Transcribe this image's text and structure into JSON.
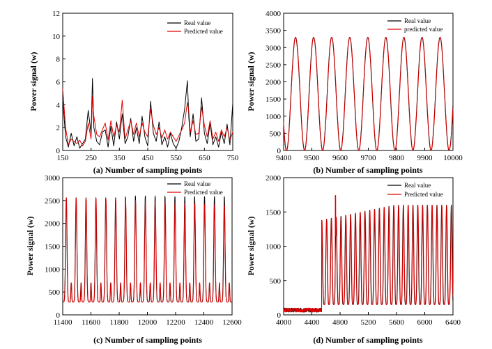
{
  "colors": {
    "real": "#000000",
    "predicted": "#e00000"
  },
  "chart_data": [
    {
      "id": "a",
      "type": "line",
      "xlabel": "(a) Number of sampling points",
      "ylabel": "Power signal (w)",
      "xlim": [
        150,
        750
      ],
      "ylim": [
        0,
        12
      ],
      "xticks": [
        150,
        250,
        350,
        450,
        550,
        650,
        750
      ],
      "yticks": [
        0,
        2,
        4,
        6,
        8,
        10,
        12
      ],
      "legend": [
        "Real value",
        "Predicted value"
      ],
      "series": [
        {
          "name": "Real value",
          "x": [
            150,
            160,
            170,
            180,
            190,
            200,
            210,
            220,
            230,
            240,
            250,
            255,
            260,
            270,
            280,
            290,
            300,
            310,
            320,
            330,
            340,
            350,
            360,
            370,
            380,
            390,
            400,
            410,
            420,
            430,
            440,
            450,
            460,
            470,
            480,
            490,
            500,
            510,
            520,
            530,
            540,
            550,
            560,
            570,
            580,
            590,
            595,
            600,
            610,
            620,
            630,
            640,
            650,
            660,
            670,
            680,
            690,
            700,
            710,
            720,
            730,
            740,
            750
          ],
          "y": [
            4.5,
            1.2,
            0.3,
            1.5,
            0.4,
            1.2,
            0.2,
            0.6,
            1.0,
            3.5,
            1.5,
            6.3,
            2.0,
            0.8,
            0.5,
            1.6,
            1.8,
            0.3,
            2.1,
            0.4,
            2.5,
            1.0,
            3.2,
            0.6,
            1.2,
            2.8,
            0.8,
            2.0,
            0.6,
            3.0,
            1.2,
            0.4,
            4.3,
            1.5,
            0.8,
            2.5,
            0.5,
            1.2,
            0.3,
            1.5,
            0.6,
            0.2,
            0.8,
            2.0,
            3.6,
            6.1,
            2.8,
            1.2,
            3.2,
            0.8,
            1.0,
            4.6,
            1.5,
            0.6,
            2.4,
            0.5,
            1.2,
            0.3,
            1.6,
            0.6,
            2.3,
            0.5,
            4.1
          ]
        },
        {
          "name": "Predicted value",
          "x": [
            150,
            160,
            170,
            180,
            190,
            200,
            210,
            220,
            230,
            240,
            250,
            255,
            260,
            270,
            280,
            290,
            300,
            310,
            320,
            330,
            340,
            350,
            360,
            370,
            380,
            390,
            400,
            410,
            420,
            430,
            440,
            450,
            460,
            470,
            480,
            490,
            500,
            510,
            520,
            530,
            540,
            550,
            560,
            570,
            580,
            590,
            595,
            600,
            610,
            620,
            630,
            640,
            650,
            660,
            670,
            680,
            690,
            700,
            710,
            720,
            730,
            740,
            750
          ],
          "y": [
            5.4,
            2.0,
            0.5,
            1.0,
            0.8,
            0.6,
            0.9,
            0.4,
            0.8,
            2.4,
            1.0,
            4.7,
            3.0,
            1.4,
            1.2,
            1.8,
            2.4,
            0.9,
            2.6,
            1.2,
            2.2,
            1.6,
            4.4,
            1.0,
            1.8,
            2.6,
            1.4,
            2.4,
            1.2,
            2.4,
            1.6,
            1.2,
            3.6,
            2.2,
            1.4,
            2.0,
            1.1,
            1.8,
            1.0,
            1.6,
            1.2,
            0.8,
            1.3,
            1.8,
            2.4,
            4.2,
            3.4,
            1.6,
            2.6,
            1.4,
            1.5,
            3.8,
            2.2,
            1.2,
            2.6,
            1.0,
            1.6,
            0.8,
            1.8,
            1.2,
            2.0,
            0.9,
            1.6
          ]
        }
      ]
    },
    {
      "id": "b",
      "type": "line",
      "xlabel": "(b) Number of sampling points",
      "ylabel": "Power signal (w)",
      "xlim": [
        9400,
        10000
      ],
      "ylim": [
        0,
        4000
      ],
      "xticks": [
        9400,
        9500,
        9600,
        9700,
        9800,
        9900,
        10000
      ],
      "yticks": [
        0,
        500,
        1000,
        1500,
        2000,
        2500,
        3000,
        3500,
        4000
      ],
      "legend": [
        "Real value",
        "predicted value"
      ],
      "wave": {
        "peak": 3300,
        "trough": 0,
        "period": 64,
        "first_peak": 9442
      },
      "series": [
        {
          "name": "Real value"
        },
        {
          "name": "predicted value"
        }
      ]
    },
    {
      "id": "c",
      "type": "line",
      "xlabel": "(c) Number of sampling points",
      "ylabel": "Power signal (w)",
      "xlim": [
        11400,
        12600
      ],
      "ylim": [
        0,
        3000
      ],
      "xticks": [
        11400,
        11600,
        11800,
        12000,
        12200,
        12400,
        12600
      ],
      "yticks": [
        0,
        500,
        1000,
        1500,
        2000,
        2500,
        3000
      ],
      "legend": [
        "Real value",
        "Predicted value"
      ],
      "wave": {
        "period": 70,
        "first_peak": 11425,
        "low": 280,
        "secondary": 700,
        "real_peaks": [
          2560,
          2560,
          2560,
          2560,
          2560,
          2560,
          2580,
          2600,
          2600,
          2600,
          2600,
          2600,
          2600,
          2600,
          2600,
          2600,
          2600
        ],
        "pred_peaks": [
          2560,
          2550,
          2550,
          2550,
          2540,
          2530,
          2510,
          2500,
          2490,
          2480,
          2470,
          2450,
          2440,
          2430,
          2420,
          2410,
          2400
        ]
      },
      "series": [
        {
          "name": "Real value"
        },
        {
          "name": "Predicted value"
        }
      ]
    },
    {
      "id": "d",
      "type": "line",
      "xlabel": "(d) Number of sampling points",
      "ylabel": "Power signal (w)",
      "xlim": [
        4000,
        6400
      ],
      "ylim": [
        0,
        2000
      ],
      "xticks": [
        4000,
        4400,
        4800,
        5200,
        5600,
        6000,
        6400
      ],
      "yticks": [
        0,
        500,
        1000,
        1500,
        2000
      ],
      "legend": [
        "Real value",
        "Predicted value"
      ],
      "wave": {
        "baseline": 70,
        "onset": 4540,
        "period": 68,
        "low": 150,
        "peak_start": 1380,
        "peak_end": 1600,
        "spike_x": 4735,
        "spike_y": 1740
      },
      "series": [
        {
          "name": "Real value"
        },
        {
          "name": "Predicted value"
        }
      ]
    }
  ]
}
